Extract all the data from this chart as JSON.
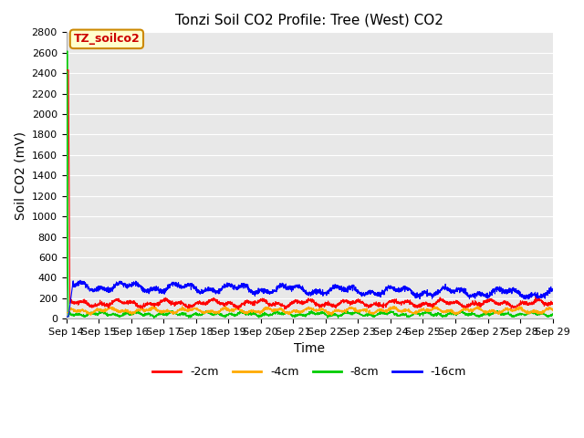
{
  "title": "Tonzi Soil CO2 Profile: Tree (West) CO2",
  "ylabel": "Soil CO2 (mV)",
  "xlabel": "Time",
  "ylim": [
    0,
    2800
  ],
  "yticks": [
    0,
    200,
    400,
    600,
    800,
    1000,
    1200,
    1400,
    1600,
    1800,
    2000,
    2200,
    2400,
    2600,
    2800
  ],
  "xtick_labels": [
    "Sep 14",
    "Sep 15",
    "Sep 16",
    "Sep 17",
    "Sep 18",
    "Sep 19",
    "Sep 20",
    "Sep 21",
    "Sep 22",
    "Sep 23",
    "Sep 24",
    "Sep 25",
    "Sep 26",
    "Sep 27",
    "Sep 28",
    "Sep 29"
  ],
  "colors": {
    "2cm": "#ff0000",
    "4cm": "#ffaa00",
    "8cm": "#00cc00",
    "16cm": "#0000ff"
  },
  "legend_labels": [
    "-2cm",
    "-4cm",
    "-8cm",
    "-16cm"
  ],
  "legend_colors": [
    "#ff0000",
    "#ffaa00",
    "#00cc00",
    "#0000ff"
  ],
  "annotation_text": "TZ_soilco2",
  "annotation_bg": "#ffffcc",
  "annotation_border": "#cc8800",
  "annotation_text_color": "#cc0000",
  "background_color": "#e8e8e8",
  "title_fontsize": 11,
  "axis_label_fontsize": 10,
  "tick_fontsize": 8,
  "legend_fontsize": 9,
  "seed": 42,
  "n_points": 3000,
  "spike_day": 0.07,
  "base_2cm": 150,
  "base_4cm": 80,
  "base_8cm": 45,
  "base_16cm": 320,
  "spike_value_8cm": 2620,
  "spike_value_red": 2430
}
